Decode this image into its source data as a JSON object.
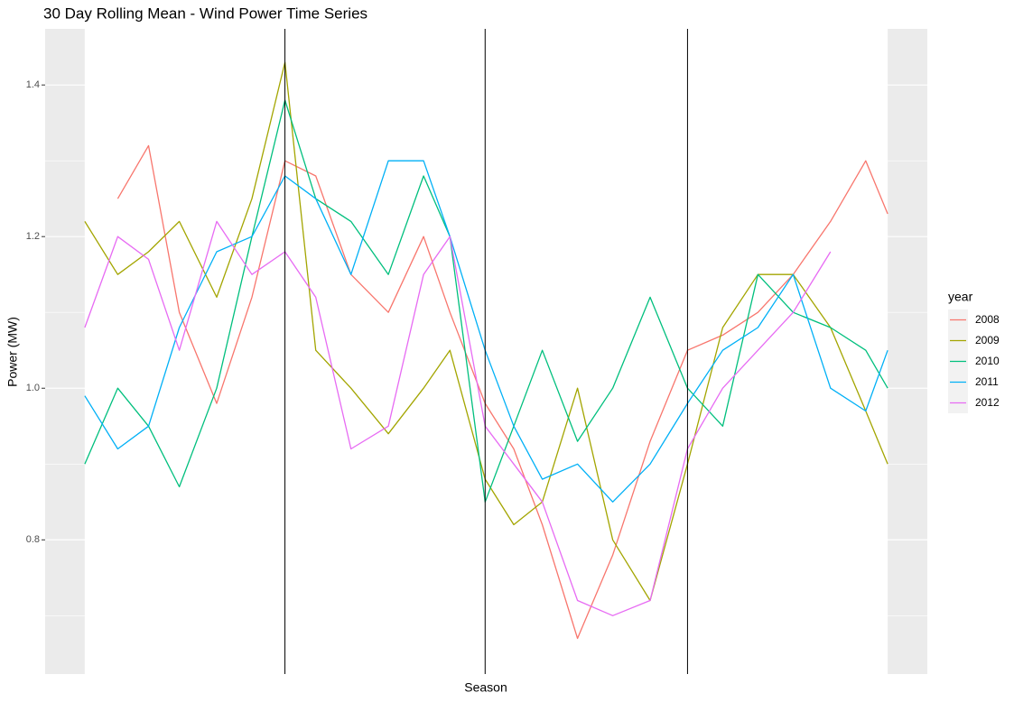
{
  "chart_data": {
    "type": "line",
    "title": "30 Day Rolling Mean - Wind Power Time Series",
    "x_label": "Season",
    "y_label": "Power (MW)",
    "legend_title": "year",
    "legend": "right",
    "grid": true,
    "x": [
      0,
      15,
      29,
      43,
      60,
      76,
      91,
      105,
      121,
      138,
      154,
      166,
      182,
      195,
      208,
      224,
      240,
      257,
      274,
      290,
      306,
      322,
      339,
      355,
      365
    ],
    "xlim": [
      -18,
      383
    ],
    "vlines": [
      91,
      182,
      274
    ],
    "ylim": [
      0.623,
      1.474
    ],
    "yticks": [
      0.8,
      {
        "value": 1,
        "label": "1.0"
      },
      1.2,
      1.4
    ],
    "minor_yticks": [
      0.7,
      0.9,
      1.1,
      1.3
    ],
    "series": [
      {
        "name": "2008",
        "color": "#F8766D",
        "values": [
          null,
          1.25,
          1.32,
          1.1,
          0.98,
          1.12,
          1.3,
          1.28,
          1.15,
          1.1,
          1.2,
          1.1,
          0.98,
          0.92,
          0.82,
          0.67,
          0.78,
          0.93,
          1.05,
          1.07,
          1.1,
          1.15,
          1.22,
          1.3,
          1.23
        ]
      },
      {
        "name": "2009",
        "color": "#A3A500",
        "values": [
          1.22,
          1.15,
          1.18,
          1.22,
          1.12,
          1.25,
          1.43,
          1.05,
          1.0,
          0.94,
          1.0,
          1.05,
          0.88,
          0.82,
          0.85,
          1.0,
          0.8,
          0.72,
          0.9,
          1.08,
          1.15,
          1.15,
          1.08,
          0.97,
          0.9
        ]
      },
      {
        "name": "2010",
        "color": "#00BF7D",
        "values": [
          0.9,
          1.0,
          0.95,
          0.87,
          1.0,
          1.2,
          1.38,
          1.25,
          1.22,
          1.15,
          1.28,
          1.2,
          0.85,
          0.95,
          1.05,
          0.93,
          1.0,
          1.12,
          1.0,
          0.95,
          1.15,
          1.1,
          1.08,
          1.05,
          1.0
        ]
      },
      {
        "name": "2011",
        "color": "#00B0F6",
        "values": [
          0.99,
          0.92,
          0.95,
          1.08,
          1.18,
          1.2,
          1.28,
          1.25,
          1.15,
          1.3,
          1.3,
          1.2,
          1.05,
          0.95,
          0.88,
          0.9,
          0.85,
          0.9,
          0.98,
          1.05,
          1.08,
          1.15,
          1.0,
          0.97,
          1.05
        ]
      },
      {
        "name": "2012",
        "color": "#E76BF3",
        "values": [
          1.08,
          1.2,
          1.17,
          1.05,
          1.22,
          1.15,
          1.18,
          1.12,
          0.92,
          0.95,
          1.15,
          1.2,
          0.95,
          0.9,
          0.85,
          0.72,
          0.7,
          0.72,
          0.92,
          1.0,
          1.05,
          1.1,
          1.18,
          null,
          null
        ]
      }
    ]
  }
}
